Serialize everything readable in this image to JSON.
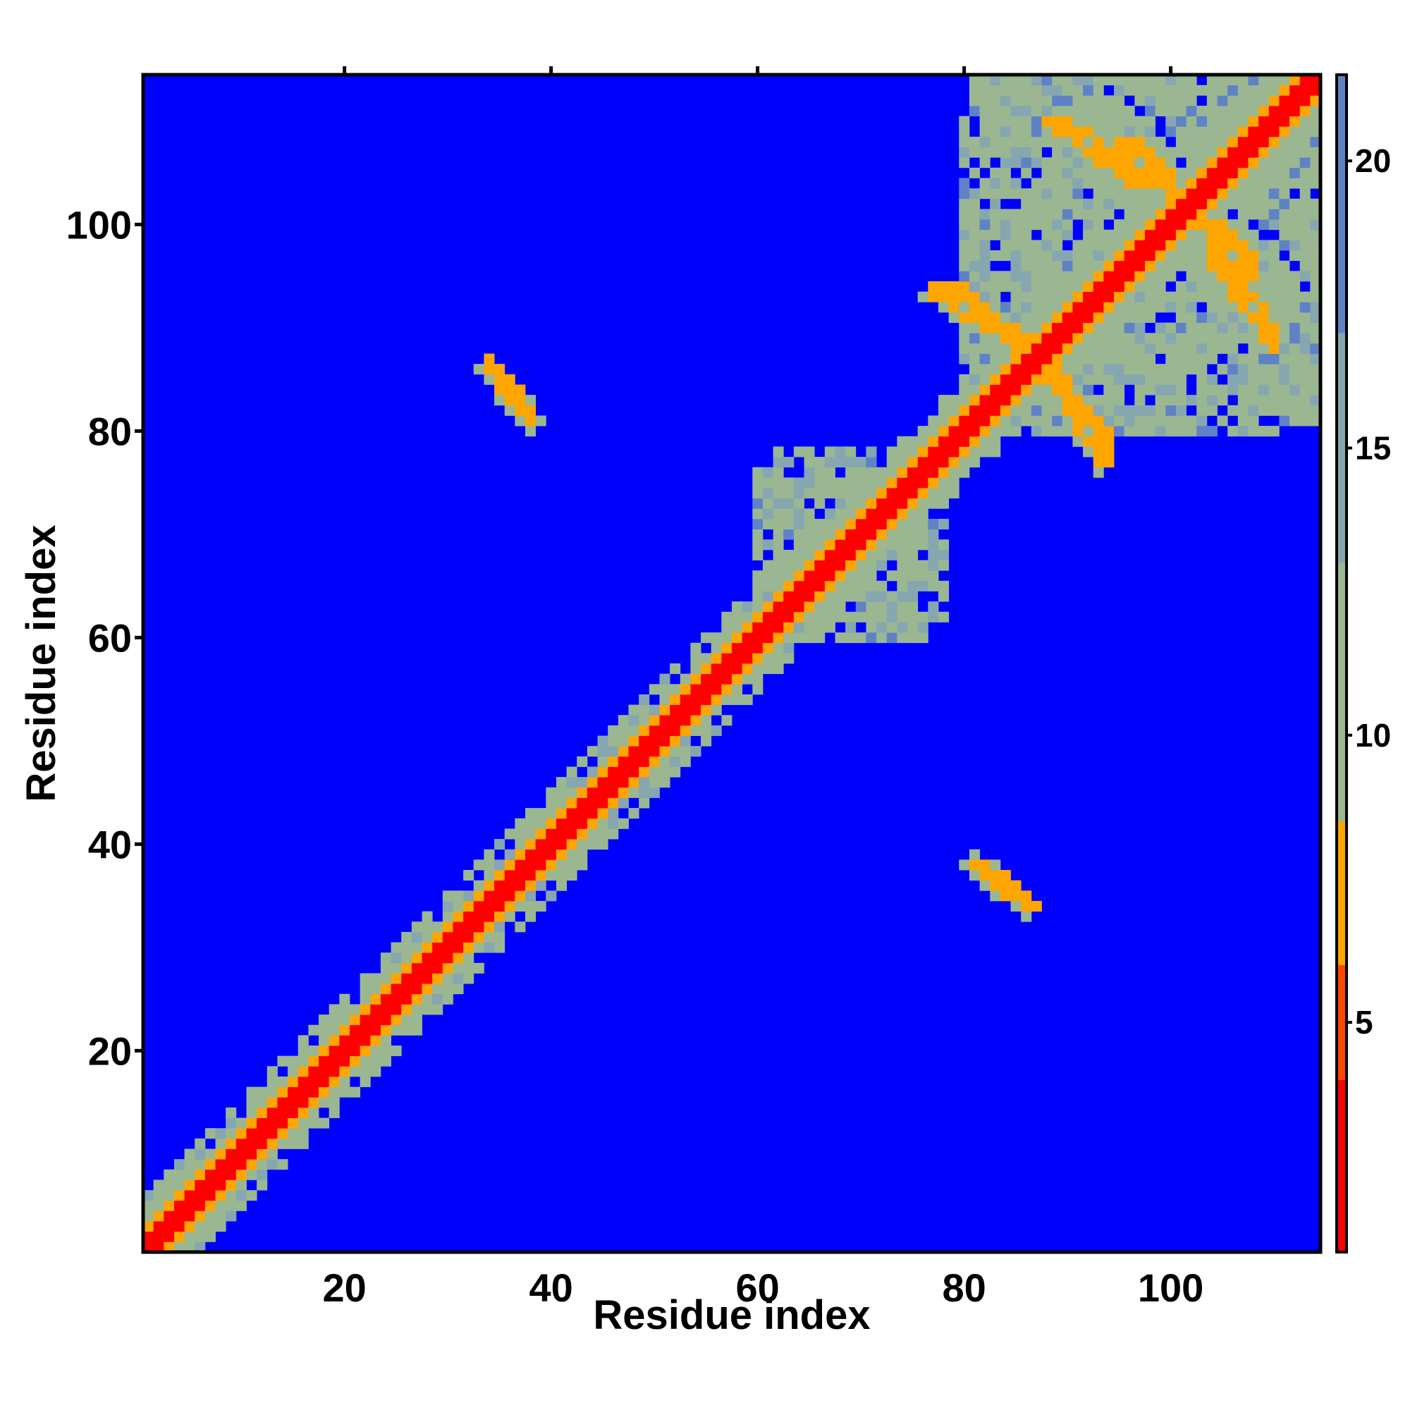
{
  "chart_data": {
    "type": "heatmap",
    "title": "",
    "xlabel": "Residue index",
    "ylabel": "Residue index",
    "xlim": [
      0.5,
      114.5
    ],
    "ylim": [
      0.5,
      114.5
    ],
    "xticks": [
      20,
      40,
      60,
      80,
      100
    ],
    "yticks": [
      20,
      40,
      60,
      80,
      100
    ],
    "n_residues": 114,
    "value": "inter-residue distance (contact map)",
    "colorbar": {
      "range": [
        1,
        21.5
      ],
      "ticks": [
        5,
        10,
        15,
        20
      ],
      "colors": [
        {
          "from": 1,
          "to": 4,
          "color": "#ff0000"
        },
        {
          "from": 4,
          "to": 6,
          "color": "#ff4500"
        },
        {
          "from": 6,
          "to": 8.5,
          "color": "#ffa500"
        },
        {
          "from": 8.5,
          "to": 13,
          "color": "#9ab791"
        },
        {
          "from": 13,
          "to": 17,
          "color": "#86a6b0"
        },
        {
          "from": 17,
          "to": 21.5,
          "color": "#5f82c6"
        }
      ],
      "background_color": "#0000ff"
    },
    "features": [
      {
        "kind": "diagonal",
        "from": 1,
        "to": 114,
        "core_halfwidth": 1,
        "orange_halfwidth": 2,
        "green_halfwidth": 5
      },
      {
        "kind": "cluster",
        "x": [
          81,
          114
        ],
        "y": [
          80,
          114
        ],
        "level": "green",
        "note": "dense contact region"
      },
      {
        "kind": "cluster",
        "x": [
          62,
          76
        ],
        "y": [
          60,
          78
        ],
        "level": "green"
      },
      {
        "kind": "segment",
        "x1": 34,
        "y1": 86,
        "x2": 38,
        "y2": 81,
        "level": "orange"
      },
      {
        "kind": "segment",
        "x1": 82,
        "y1": 38,
        "x2": 86,
        "y2": 34,
        "level": "orange"
      },
      {
        "kind": "segment",
        "x1": 88,
        "y1": 86,
        "x2": 93,
        "y2": 77,
        "level": "orange"
      },
      {
        "kind": "segment",
        "x1": 96,
        "y1": 108,
        "x2": 101,
        "y2": 102,
        "level": "orange"
      },
      {
        "kind": "segment",
        "x1": 78,
        "y1": 94,
        "x2": 86,
        "y2": 89,
        "level": "orange"
      },
      {
        "kind": "segment",
        "x1": 103,
        "y1": 100,
        "x2": 110,
        "y2": 90,
        "level": "orange"
      },
      {
        "kind": "segment",
        "x1": 88,
        "y1": 110,
        "x2": 96,
        "y2": 104,
        "level": "orange"
      }
    ]
  }
}
